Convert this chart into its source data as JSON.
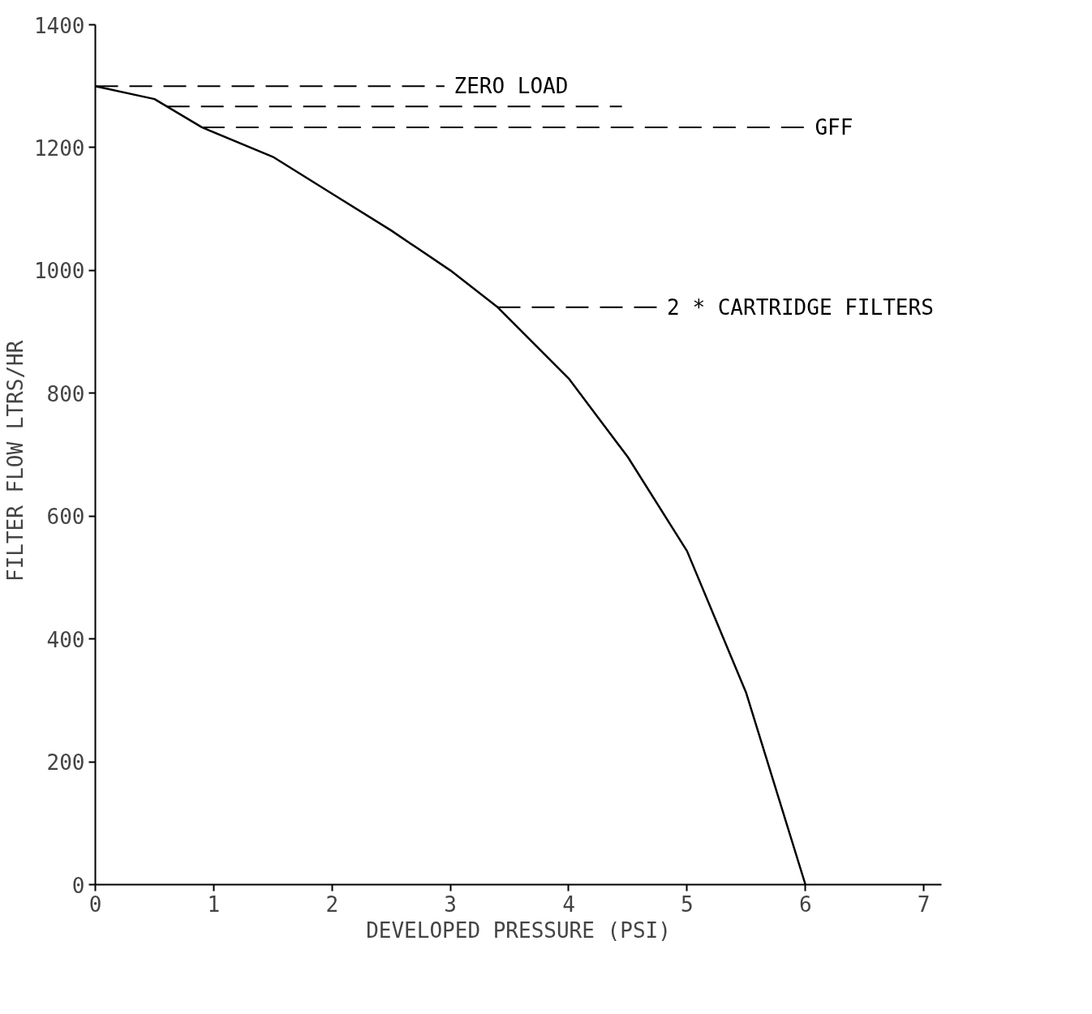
{
  "chart_data": {
    "type": "line",
    "xlabel": "DEVELOPED PRESSURE (PSI)",
    "ylabel": "FILTER FLOW  LTRS/HR",
    "x": [
      0,
      0.5,
      0.9,
      1.5,
      2,
      2.5,
      3,
      3.4,
      4,
      4.5,
      5,
      5.5,
      6
    ],
    "series": [
      {
        "color": "#000000",
        "values": [
          1300,
          1279,
          1233,
          1185,
          1125,
          1065,
          1000,
          940,
          824,
          696,
          543,
          312,
          0
        ]
      }
    ],
    "xlim": [
      0,
      7.15
    ],
    "ylim": [
      0,
      1400
    ],
    "xticks": [
      0,
      1,
      2,
      3,
      4,
      5,
      6,
      7
    ],
    "yticks": [
      0,
      200,
      400,
      600,
      800,
      1000,
      1200,
      1400
    ],
    "grid": false,
    "marker": "none",
    "line_style": "solid",
    "ref_lines": [
      {
        "axis": "y",
        "value": 1300,
        "label": "ZERO LOAD",
        "line_style": "dashed",
        "color": "#000000"
      },
      {
        "axis": "y",
        "value": 1267,
        "line_style": "dashed",
        "color": "#000000"
      },
      {
        "axis": "y",
        "value": 1233,
        "label": "GFF",
        "line_style": "dashed",
        "color": "#000000"
      },
      {
        "axis": "y",
        "value": 940,
        "label": "2 * CARTRIDGE FILTERS",
        "line_style": "dashed",
        "color": "#000000"
      }
    ]
  }
}
